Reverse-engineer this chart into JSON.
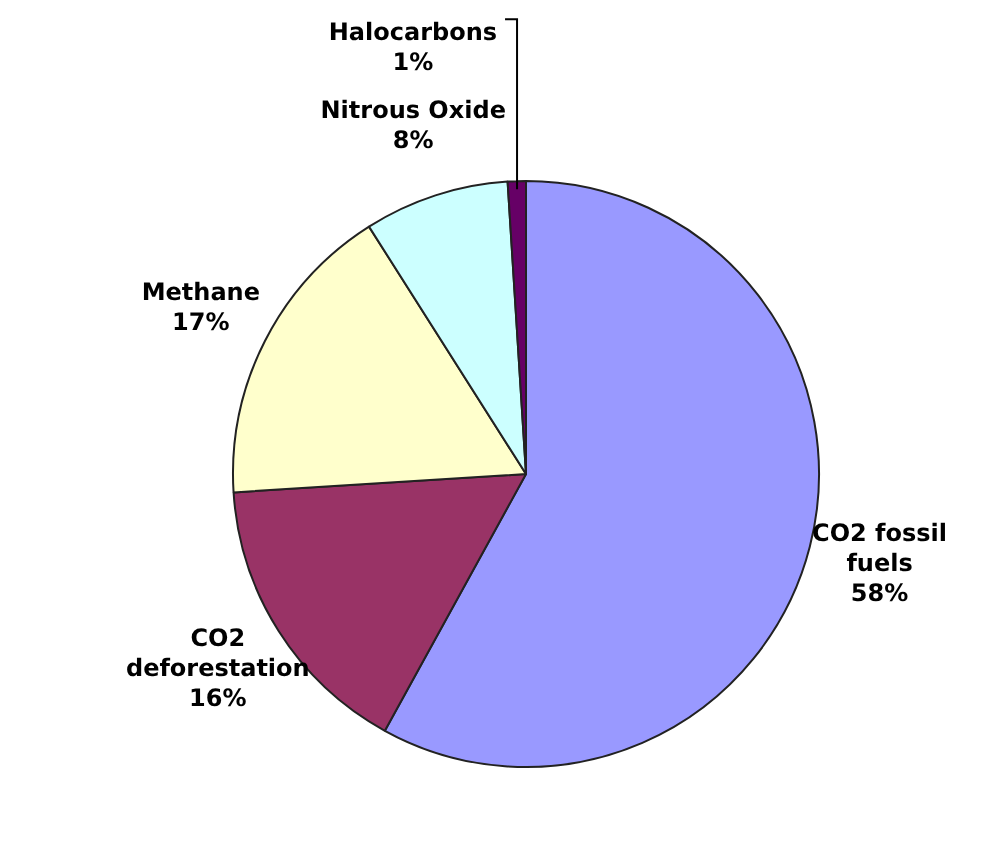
{
  "chart_data": {
    "type": "pie",
    "categories": [
      "CO2 fossil fuels",
      "CO2 deforestation",
      "Methane",
      "Nitrous Oxide",
      "Halocarbons"
    ],
    "values": [
      58,
      16,
      17,
      8,
      1
    ],
    "value_labels": [
      "58%",
      "16%",
      "17%",
      "8%",
      "1%"
    ],
    "colors": [
      "#9999ff",
      "#993366",
      "#ffffcc",
      "#ccffff",
      "#660066"
    ],
    "legend": false
  }
}
